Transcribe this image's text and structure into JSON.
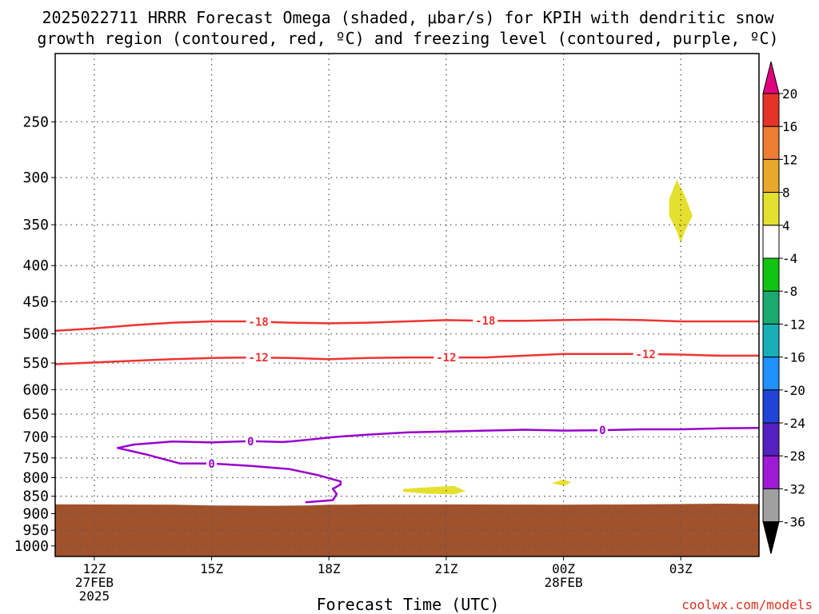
{
  "chart_data": {
    "type": "contour",
    "title_line1": "2025022711 HRRR Forecast Omega (shaded, μbar/s) for KPIH with dendritic snow",
    "title_line2": "growth region (contoured, red, ºC) and freezing level (contoured, purple, ºC)",
    "xlabel": "Forecast Time (UTC)",
    "ylabel": "",
    "credit": "coolwx.com/models",
    "x_ticks": [
      {
        "hour": 12,
        "lines": [
          "12Z",
          "27FEB",
          "2025"
        ]
      },
      {
        "hour": 15,
        "lines": [
          "15Z"
        ]
      },
      {
        "hour": 18,
        "lines": [
          "18Z"
        ]
      },
      {
        "hour": 21,
        "lines": [
          "21Z"
        ]
      },
      {
        "hour": 24,
        "lines": [
          "00Z",
          "28FEB"
        ]
      },
      {
        "hour": 27,
        "lines": [
          "03Z"
        ]
      }
    ],
    "x_range_hours": [
      11,
      29
    ],
    "y_range_hpa": [
      200,
      1035
    ],
    "y_ticks": [
      250,
      300,
      350,
      400,
      450,
      500,
      550,
      600,
      650,
      700,
      750,
      800,
      850,
      900,
      950,
      1000
    ],
    "grid": true,
    "terrain": {
      "color": "#a0522d",
      "surface_hpa": [
        [
          11,
          873
        ],
        [
          14,
          874
        ],
        [
          15,
          876
        ],
        [
          16.5,
          877
        ],
        [
          17.5,
          876
        ],
        [
          18,
          874
        ],
        [
          18.5,
          874
        ],
        [
          19,
          873
        ],
        [
          21,
          873
        ],
        [
          24,
          874
        ],
        [
          26,
          873
        ],
        [
          28,
          871
        ],
        [
          29,
          872
        ]
      ]
    },
    "omega_shaded": [
      {
        "range": "4 to 8",
        "color": "#e5e02f",
        "outline": [
          [
            26.9,
            302
          ],
          [
            27.1,
            318
          ],
          [
            27.3,
            340
          ],
          [
            27.1,
            358
          ],
          [
            27,
            372
          ],
          [
            26.9,
            358
          ],
          [
            26.7,
            340
          ],
          [
            26.7,
            322
          ]
        ]
      },
      {
        "range": "4 to 8",
        "color": "#e5e02f",
        "outline": [
          [
            19.9,
            830
          ],
          [
            20.6,
            825
          ],
          [
            21.2,
            822
          ],
          [
            21.5,
            836
          ],
          [
            21.2,
            845
          ],
          [
            20.5,
            843
          ],
          [
            19.9,
            838
          ]
        ]
      },
      {
        "range": "4 to 8",
        "color": "#e5e02f",
        "outline": [
          [
            23.7,
            814
          ],
          [
            24.0,
            805
          ],
          [
            24.2,
            812
          ],
          [
            24.0,
            822
          ]
        ]
      }
    ],
    "contours": [
      {
        "level": -18,
        "label": "-18",
        "color": "#ee3333",
        "points": [
          [
            11,
            495
          ],
          [
            12,
            491
          ],
          [
            13,
            486
          ],
          [
            14,
            482
          ],
          [
            15,
            480
          ],
          [
            16,
            480
          ],
          [
            17,
            482
          ],
          [
            18,
            483
          ],
          [
            19,
            482
          ],
          [
            20,
            480
          ],
          [
            21,
            478
          ],
          [
            22,
            479
          ],
          [
            23,
            479
          ],
          [
            24,
            478
          ],
          [
            25,
            477
          ],
          [
            26,
            478
          ],
          [
            27,
            480
          ],
          [
            28,
            480
          ],
          [
            29,
            480
          ]
        ],
        "label_x": [
          16.2,
          22.0
        ]
      },
      {
        "level": -12,
        "label": "-12",
        "color": "#ee3333",
        "points": [
          [
            11,
            552
          ],
          [
            12,
            549
          ],
          [
            13,
            546
          ],
          [
            14,
            543
          ],
          [
            15,
            541
          ],
          [
            16,
            540
          ],
          [
            17,
            541
          ],
          [
            18,
            543
          ],
          [
            19,
            541
          ],
          [
            20,
            540
          ],
          [
            21,
            540
          ],
          [
            22,
            540
          ],
          [
            23,
            537
          ],
          [
            24,
            534
          ],
          [
            25,
            534
          ],
          [
            26,
            534
          ],
          [
            27,
            535
          ],
          [
            28,
            537
          ],
          [
            29,
            537
          ]
        ],
        "label_x": [
          16.2,
          21.0,
          26.1
        ]
      },
      {
        "level": 0,
        "label": "0",
        "color": "#9900cc",
        "points": [
          [
            29,
            680
          ],
          [
            28,
            681
          ],
          [
            27,
            683
          ],
          [
            26,
            683
          ],
          [
            25,
            685
          ],
          [
            24,
            686
          ],
          [
            23,
            684
          ],
          [
            22,
            686
          ],
          [
            21,
            688
          ],
          [
            20,
            690
          ],
          [
            19,
            695
          ],
          [
            18.2,
            700
          ],
          [
            17,
            711
          ],
          [
            16.8,
            712
          ],
          [
            16,
            710
          ],
          [
            15,
            713
          ],
          [
            14,
            711
          ],
          [
            13,
            718
          ],
          [
            12.6,
            726
          ],
          [
            13.3,
            741
          ],
          [
            14.2,
            764
          ],
          [
            15,
            764
          ],
          [
            16,
            770
          ],
          [
            17,
            778
          ],
          [
            17.7,
            793
          ],
          [
            18.3,
            810
          ],
          [
            18.3,
            818
          ],
          [
            18.1,
            830
          ],
          [
            18.2,
            844
          ],
          [
            18.1,
            861
          ],
          [
            17.4,
            867
          ]
        ],
        "label_x": [
          16.0,
          25.0,
          15.0
        ]
      }
    ],
    "colorbar": {
      "levels": [
        "20",
        "16",
        "12",
        "8",
        "4",
        "-4",
        "-8",
        "-12",
        "-16",
        "-20",
        "-24",
        "-28",
        "-32",
        "-36"
      ],
      "colors": [
        "#e0007f",
        "#e63329",
        "#ed7d31",
        "#e8a82c",
        "#e5e02f",
        "#ffffff",
        "#11c411",
        "#1aaa70",
        "#17b0b6",
        "#1e90ff",
        "#2044d8",
        "#5520c0",
        "#9e1ad4",
        "#a0a0a0",
        "#000000"
      ]
    }
  }
}
